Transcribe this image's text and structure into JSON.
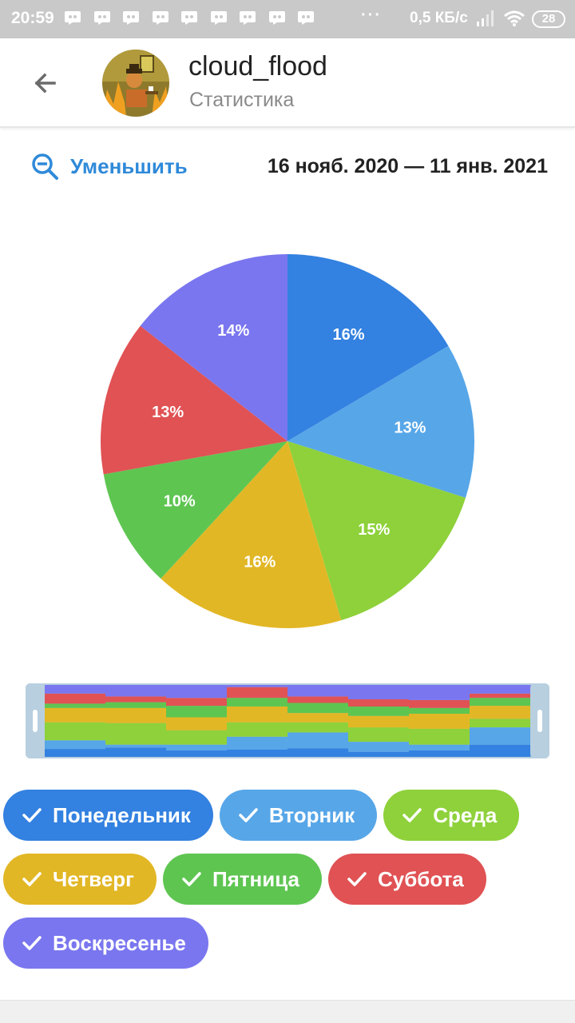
{
  "status_bar": {
    "time": "20:59",
    "notification_icon": "discord-icon",
    "notification_count": 9,
    "more": "···",
    "speed": "0,5 КБ/с",
    "battery": "28"
  },
  "header": {
    "title": "cloud_flood",
    "subtitle": "Статистика"
  },
  "controls": {
    "zoom_out_label": "Уменьшить",
    "date_range": "16 нояб. 2020 — 11 янв. 2021"
  },
  "colors": {
    "accent": "#2f8ad9",
    "Понедельник": "#3381e0",
    "Вторник": "#57a6e8",
    "Среда": "#8ed13a",
    "Четверг": "#e2b725",
    "Пятница": "#5ec551",
    "Суббота": "#e05254",
    "Воскресенье": "#7a76ef"
  },
  "chart_data": {
    "type": "pie",
    "categories": [
      "Понедельник",
      "Вторник",
      "Среда",
      "Четверг",
      "Пятница",
      "Суббота",
      "Воскресенье"
    ],
    "values": [
      16,
      13,
      15,
      16,
      10,
      13,
      14
    ],
    "labels": [
      "16%",
      "13%",
      "15%",
      "16%",
      "10%",
      "13%",
      "14%"
    ],
    "title": "",
    "navigator": {
      "type": "area",
      "stacked_percent": true,
      "period_count": 8,
      "series": [
        {
          "name": "Понедельник",
          "values": [
            11,
            13,
            9,
            10,
            12,
            7,
            9,
            17
          ]
        },
        {
          "name": "Вторник",
          "values": [
            12,
            4,
            8,
            18,
            22,
            14,
            8,
            24
          ]
        },
        {
          "name": "Среда",
          "values": [
            25,
            30,
            20,
            20,
            14,
            20,
            22,
            12
          ]
        },
        {
          "name": "Четверг",
          "values": [
            20,
            21,
            18,
            22,
            13,
            16,
            21,
            18
          ]
        },
        {
          "name": "Пятница",
          "values": [
            6,
            8,
            16,
            12,
            14,
            13,
            8,
            11
          ]
        },
        {
          "name": "Суббота",
          "values": [
            14,
            8,
            11,
            15,
            9,
            10,
            11,
            6
          ]
        },
        {
          "name": "Воскресенье",
          "values": [
            12,
            16,
            18,
            3,
            16,
            20,
            21,
            12
          ]
        }
      ]
    }
  }
}
